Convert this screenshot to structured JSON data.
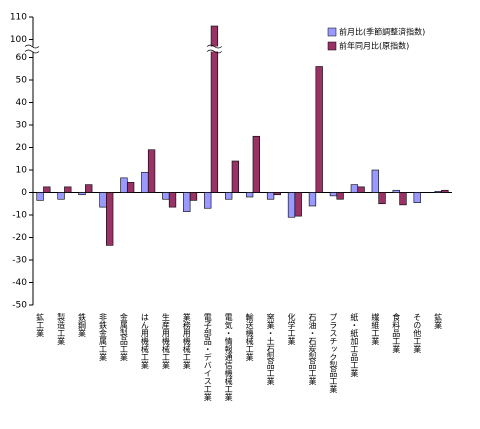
{
  "chart_data": {
    "type": "bar",
    "categories": [
      "鉱工業",
      "製造工業",
      "鉄鋼業",
      "非鉄金属工業",
      "金属製品工業",
      "はん用機械工業",
      "生産用機械工業",
      "業務用機械工業",
      "電子部品・デバイス工業",
      "電気・情報通信機械工業",
      "輸送機械工業",
      "窯業・土石製品工業",
      "化学工業",
      "石油・石炭製品工業",
      "プラスチック製品工業",
      "紙・紙加工品工業",
      "繊維工業",
      "食料品工業",
      "その他工業",
      "鉱業"
    ],
    "series": [
      {
        "name": "前月比(季節調整済指数)",
        "color": "#9999ff",
        "values": [
          -3.5,
          -3,
          -1,
          -6.5,
          6.5,
          9,
          -3,
          -8.5,
          -7,
          -3,
          -2,
          -3,
          -11,
          -6,
          -1.5,
          3.5,
          10,
          1,
          -4.5,
          0.5
        ]
      },
      {
        "name": "前年同月比(原指数)",
        "color": "#993366",
        "values": [
          2.5,
          2.5,
          3.5,
          -23.5,
          4.5,
          19,
          -6.5,
          -3.5,
          106,
          14,
          25,
          -1,
          -10.5,
          56,
          -3,
          2.5,
          -5,
          -5.5,
          0,
          1
        ]
      }
    ],
    "ylim": [
      -50,
      110
    ],
    "yticks": [
      -50,
      -40,
      -30,
      -20,
      -10,
      0,
      10,
      20,
      30,
      40,
      50,
      60,
      100,
      110
    ],
    "axis_break": [
      60,
      100
    ],
    "legend": "top-right"
  }
}
